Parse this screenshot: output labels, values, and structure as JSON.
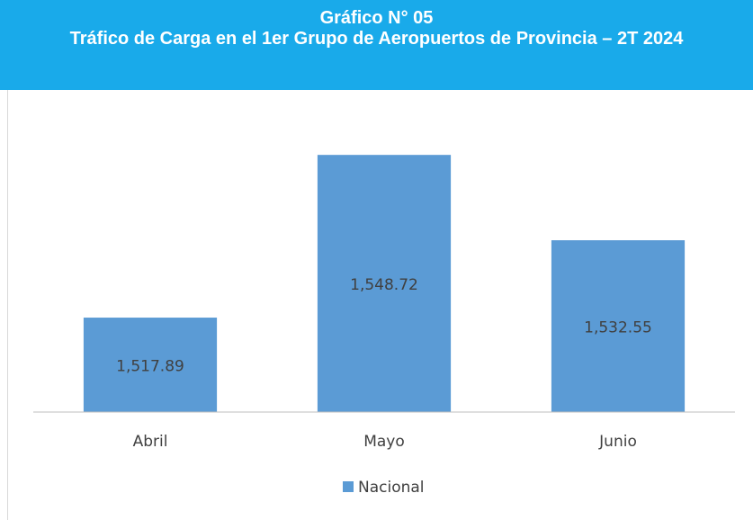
{
  "chart_data": {
    "type": "bar",
    "title": "Gráfico N° 05",
    "subtitle": "Tráfico de Carga en el 1er Grupo de Aeropuertos de Provincia – 2T 2024",
    "categories": [
      "Abril",
      "Mayo",
      "Junio"
    ],
    "series": [
      {
        "name": "Nacional",
        "color": "#5b9bd5",
        "values": [
          1517.89,
          1548.72,
          1532.55
        ],
        "value_labels": [
          "1,517.89",
          "1,548.72",
          "1,532.55"
        ]
      }
    ],
    "ylim": [
      1500,
      1560
    ],
    "legend": "bottom"
  }
}
